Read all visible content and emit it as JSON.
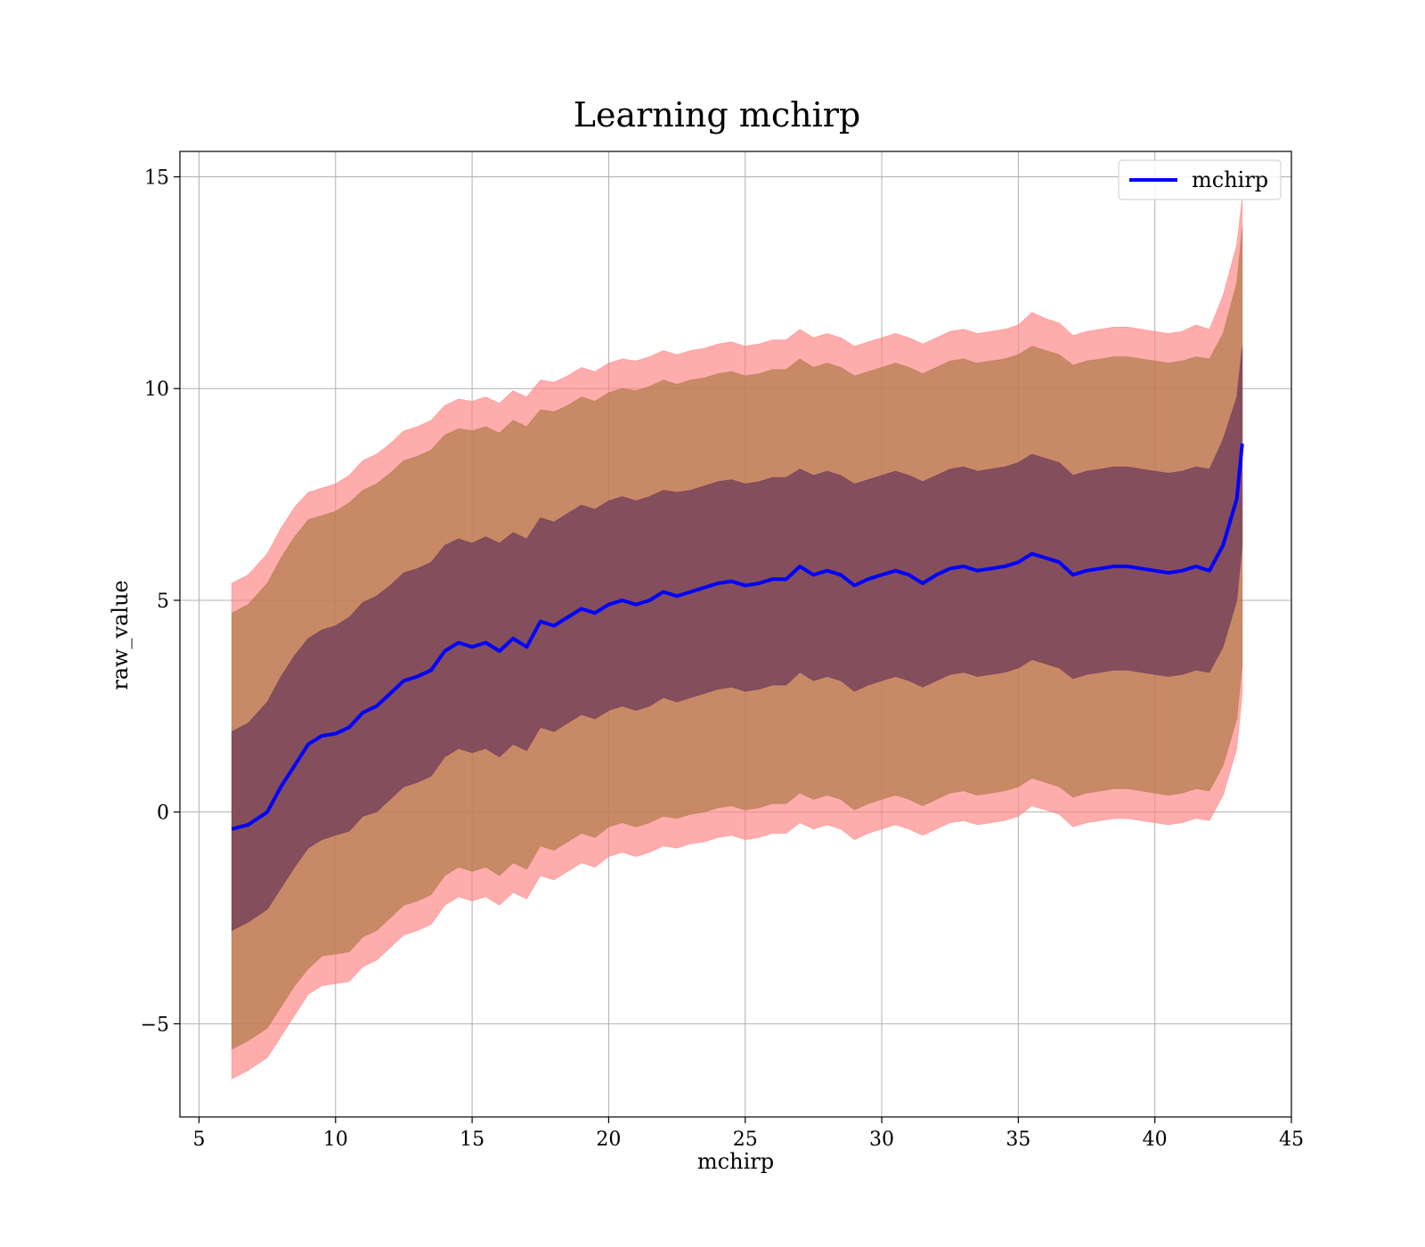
{
  "chart_data": {
    "type": "area",
    "title": "Learning mchirp",
    "xlabel": "mchirp",
    "ylabel": "raw_value",
    "xlim": [
      4.3,
      45
    ],
    "ylim": [
      -7.2,
      15.6
    ],
    "xticks": [
      5,
      10,
      15,
      20,
      25,
      30,
      35,
      40,
      45
    ],
    "yticks": [
      -5,
      0,
      5,
      10,
      15
    ],
    "xtick_labels": [
      "5",
      "10",
      "15",
      "20",
      "25",
      "30",
      "35",
      "40",
      "45"
    ],
    "ytick_labels": [
      "−5",
      "0",
      "5",
      "10",
      "15"
    ],
    "grid": true,
    "legend": {
      "placement": "top-right",
      "entries": [
        "mchirp"
      ]
    },
    "colors": {
      "line": "#0000ff",
      "band_outer": "#ff8080",
      "band_mid": "#b07a4a",
      "band_inner": "#6e3b5a",
      "grid": "#b0b0b0"
    },
    "series": [
      {
        "name": "mchirp",
        "x": [
          6.2,
          6.8,
          7.5,
          8.0,
          8.5,
          9.0,
          9.5,
          10.0,
          10.5,
          11.0,
          11.5,
          12.0,
          12.5,
          13.0,
          13.5,
          14.0,
          14.5,
          15.0,
          15.5,
          16.0,
          16.5,
          17.0,
          17.5,
          18.0,
          18.5,
          19.0,
          19.5,
          20.0,
          20.5,
          21.0,
          21.5,
          22.0,
          22.5,
          23.0,
          23.5,
          24.0,
          24.5,
          25.0,
          25.5,
          26.0,
          26.5,
          27.0,
          27.5,
          28.0,
          28.5,
          29.0,
          29.5,
          30.0,
          30.5,
          31.0,
          31.5,
          32.0,
          32.5,
          33.0,
          33.5,
          34.0,
          34.5,
          35.0,
          35.5,
          36.0,
          36.5,
          37.0,
          37.5,
          38.0,
          38.5,
          39.0,
          39.5,
          40.0,
          40.5,
          41.0,
          41.5,
          42.0,
          42.5,
          43.0,
          43.2
        ],
        "values": [
          -0.4,
          -0.3,
          0.0,
          0.6,
          1.1,
          1.6,
          1.8,
          1.85,
          2.0,
          2.35,
          2.5,
          2.8,
          3.1,
          3.2,
          3.35,
          3.8,
          4.0,
          3.9,
          4.0,
          3.8,
          4.1,
          3.9,
          4.5,
          4.4,
          4.6,
          4.8,
          4.7,
          4.9,
          5.0,
          4.9,
          5.0,
          5.2,
          5.1,
          5.2,
          5.3,
          5.4,
          5.45,
          5.35,
          5.4,
          5.5,
          5.5,
          5.8,
          5.6,
          5.7,
          5.6,
          5.35,
          5.5,
          5.6,
          5.7,
          5.6,
          5.4,
          5.6,
          5.75,
          5.8,
          5.7,
          5.75,
          5.8,
          5.9,
          6.1,
          6.0,
          5.9,
          5.6,
          5.7,
          5.75,
          5.8,
          5.8,
          5.75,
          5.7,
          5.65,
          5.7,
          5.8,
          5.7,
          6.3,
          7.4,
          8.7
        ],
        "band_inner_upper": [
          1.9,
          2.1,
          2.6,
          3.2,
          3.7,
          4.1,
          4.3,
          4.4,
          4.6,
          4.95,
          5.1,
          5.35,
          5.65,
          5.75,
          5.9,
          6.3,
          6.45,
          6.35,
          6.5,
          6.35,
          6.6,
          6.45,
          6.95,
          6.85,
          7.05,
          7.25,
          7.15,
          7.35,
          7.45,
          7.35,
          7.45,
          7.6,
          7.55,
          7.6,
          7.7,
          7.8,
          7.85,
          7.75,
          7.8,
          7.9,
          7.9,
          8.1,
          7.95,
          8.05,
          7.95,
          7.75,
          7.85,
          7.95,
          8.05,
          7.95,
          7.8,
          7.95,
          8.1,
          8.15,
          8.05,
          8.1,
          8.15,
          8.25,
          8.45,
          8.35,
          8.25,
          7.95,
          8.05,
          8.1,
          8.15,
          8.15,
          8.1,
          8.05,
          8.0,
          8.05,
          8.15,
          8.1,
          8.8,
          9.8,
          11.0
        ],
        "band_inner_lower": [
          -2.8,
          -2.6,
          -2.3,
          -1.8,
          -1.3,
          -0.85,
          -0.65,
          -0.55,
          -0.45,
          -0.1,
          0.0,
          0.3,
          0.6,
          0.7,
          0.85,
          1.3,
          1.5,
          1.4,
          1.5,
          1.3,
          1.6,
          1.45,
          2.0,
          1.9,
          2.1,
          2.3,
          2.2,
          2.4,
          2.5,
          2.4,
          2.5,
          2.7,
          2.6,
          2.7,
          2.8,
          2.9,
          2.95,
          2.85,
          2.9,
          3.0,
          3.0,
          3.3,
          3.1,
          3.2,
          3.1,
          2.85,
          3.0,
          3.1,
          3.2,
          3.1,
          2.95,
          3.1,
          3.25,
          3.3,
          3.2,
          3.25,
          3.3,
          3.4,
          3.6,
          3.5,
          3.4,
          3.15,
          3.25,
          3.3,
          3.35,
          3.35,
          3.3,
          3.25,
          3.2,
          3.25,
          3.35,
          3.3,
          3.9,
          5.0,
          6.3
        ],
        "band_mid_upper": [
          4.7,
          4.9,
          5.4,
          6.0,
          6.5,
          6.9,
          7.0,
          7.1,
          7.3,
          7.6,
          7.75,
          8.0,
          8.3,
          8.4,
          8.55,
          8.9,
          9.05,
          9.0,
          9.1,
          8.95,
          9.25,
          9.1,
          9.5,
          9.45,
          9.6,
          9.8,
          9.7,
          9.9,
          10.0,
          9.95,
          10.05,
          10.2,
          10.1,
          10.2,
          10.25,
          10.35,
          10.4,
          10.3,
          10.35,
          10.45,
          10.45,
          10.7,
          10.5,
          10.6,
          10.5,
          10.3,
          10.4,
          10.5,
          10.6,
          10.5,
          10.35,
          10.5,
          10.65,
          10.7,
          10.6,
          10.65,
          10.7,
          10.8,
          11.0,
          10.9,
          10.8,
          10.55,
          10.65,
          10.7,
          10.75,
          10.75,
          10.7,
          10.65,
          10.6,
          10.65,
          10.75,
          10.7,
          11.3,
          12.5,
          13.8
        ],
        "band_mid_lower": [
          -5.6,
          -5.4,
          -5.1,
          -4.6,
          -4.1,
          -3.7,
          -3.4,
          -3.35,
          -3.3,
          -2.95,
          -2.8,
          -2.5,
          -2.2,
          -2.1,
          -1.95,
          -1.5,
          -1.3,
          -1.4,
          -1.3,
          -1.5,
          -1.2,
          -1.35,
          -0.8,
          -0.9,
          -0.7,
          -0.5,
          -0.6,
          -0.35,
          -0.25,
          -0.35,
          -0.25,
          -0.1,
          -0.15,
          -0.05,
          0.0,
          0.1,
          0.15,
          0.05,
          0.1,
          0.2,
          0.2,
          0.45,
          0.3,
          0.4,
          0.3,
          0.05,
          0.2,
          0.3,
          0.4,
          0.3,
          0.15,
          0.3,
          0.45,
          0.5,
          0.4,
          0.45,
          0.5,
          0.6,
          0.8,
          0.7,
          0.6,
          0.35,
          0.45,
          0.5,
          0.55,
          0.55,
          0.5,
          0.45,
          0.4,
          0.45,
          0.55,
          0.5,
          1.1,
          2.2,
          3.5
        ],
        "band_outer_upper": [
          5.4,
          5.6,
          6.1,
          6.7,
          7.2,
          7.55,
          7.65,
          7.75,
          7.95,
          8.3,
          8.45,
          8.7,
          9.0,
          9.1,
          9.25,
          9.6,
          9.75,
          9.7,
          9.8,
          9.65,
          9.95,
          9.8,
          10.2,
          10.15,
          10.3,
          10.5,
          10.4,
          10.6,
          10.7,
          10.65,
          10.75,
          10.9,
          10.8,
          10.9,
          10.95,
          11.05,
          11.1,
          11.0,
          11.05,
          11.15,
          11.15,
          11.4,
          11.2,
          11.3,
          11.2,
          11.0,
          11.1,
          11.2,
          11.3,
          11.2,
          11.05,
          11.2,
          11.35,
          11.4,
          11.3,
          11.35,
          11.4,
          11.5,
          11.8,
          11.65,
          11.55,
          11.25,
          11.35,
          11.4,
          11.45,
          11.45,
          11.4,
          11.35,
          11.3,
          11.35,
          11.5,
          11.4,
          12.2,
          13.4,
          14.5
        ],
        "band_outer_lower": [
          -6.3,
          -6.1,
          -5.8,
          -5.3,
          -4.8,
          -4.3,
          -4.1,
          -4.05,
          -4.0,
          -3.65,
          -3.5,
          -3.2,
          -2.9,
          -2.8,
          -2.65,
          -2.2,
          -2.0,
          -2.1,
          -2.0,
          -2.2,
          -1.9,
          -2.05,
          -1.5,
          -1.6,
          -1.4,
          -1.2,
          -1.3,
          -1.05,
          -0.95,
          -1.05,
          -0.95,
          -0.8,
          -0.85,
          -0.75,
          -0.7,
          -0.6,
          -0.55,
          -0.65,
          -0.6,
          -0.5,
          -0.5,
          -0.25,
          -0.4,
          -0.3,
          -0.4,
          -0.65,
          -0.5,
          -0.4,
          -0.3,
          -0.4,
          -0.55,
          -0.4,
          -0.25,
          -0.2,
          -0.3,
          -0.25,
          -0.2,
          -0.1,
          0.15,
          0.05,
          -0.05,
          -0.35,
          -0.25,
          -0.2,
          -0.15,
          -0.15,
          -0.2,
          -0.25,
          -0.3,
          -0.25,
          -0.15,
          -0.2,
          0.4,
          1.5,
          2.8
        ]
      }
    ]
  }
}
